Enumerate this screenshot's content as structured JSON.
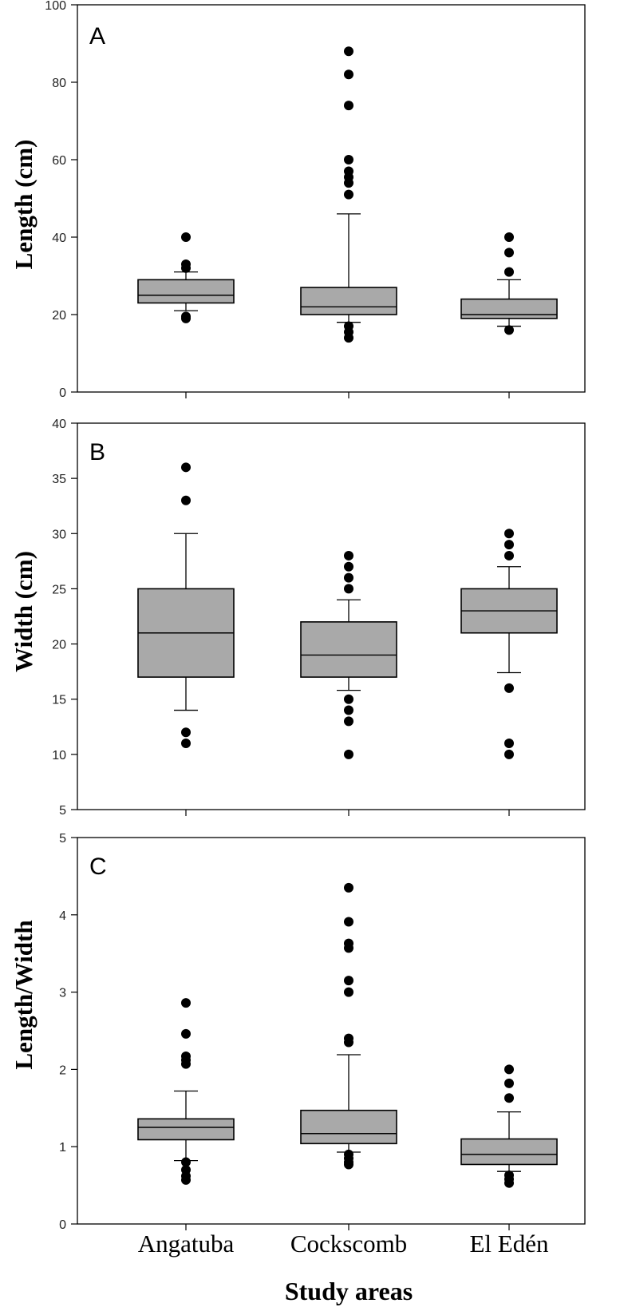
{
  "chart_data": [
    {
      "type": "box",
      "panel_label": "A",
      "ylabel": "Length (cm)",
      "ylim": [
        0,
        100
      ],
      "yticks": [
        0,
        20,
        40,
        60,
        80,
        100
      ],
      "categories": [
        "Angatuba",
        "Cockscomb",
        "El Edén"
      ],
      "box_color": "#a9a9a9",
      "boxes": [
        {
          "category": "Angatuba",
          "whisker_low": 21,
          "q1": 23,
          "median": 25,
          "q3": 29,
          "whisker_high": 31,
          "outliers": [
            19,
            19.5,
            32,
            33,
            40
          ]
        },
        {
          "category": "Cockscomb",
          "whisker_low": 18,
          "q1": 20,
          "median": 22,
          "q3": 27,
          "whisker_high": 46,
          "outliers": [
            14,
            15.5,
            17,
            51,
            54,
            55.5,
            57,
            60,
            74,
            82,
            88
          ]
        },
        {
          "category": "El Edén",
          "whisker_low": 17,
          "q1": 19,
          "median": 20,
          "q3": 24,
          "whisker_high": 29,
          "outliers": [
            16,
            31,
            36,
            40
          ]
        }
      ]
    },
    {
      "type": "box",
      "panel_label": "B",
      "ylabel": "Width (cm)",
      "ylim": [
        5,
        40
      ],
      "yticks": [
        5,
        10,
        15,
        20,
        25,
        30,
        35,
        40
      ],
      "categories": [
        "Angatuba",
        "Cockscomb",
        "El Edén"
      ],
      "box_color": "#a9a9a9",
      "boxes": [
        {
          "category": "Angatuba",
          "whisker_low": 14,
          "q1": 17,
          "median": 21,
          "q3": 25,
          "whisker_high": 30,
          "outliers": [
            11,
            12,
            33,
            36
          ]
        },
        {
          "category": "Cockscomb",
          "whisker_low": 15.8,
          "q1": 17,
          "median": 19,
          "q3": 22,
          "whisker_high": 24,
          "outliers": [
            10,
            13,
            14,
            15,
            25,
            26,
            27,
            28
          ]
        },
        {
          "category": "El Edén",
          "whisker_low": 17.4,
          "q1": 21,
          "median": 23,
          "q3": 25,
          "whisker_high": 27,
          "outliers": [
            10,
            11,
            16,
            28,
            29,
            30
          ]
        }
      ]
    },
    {
      "type": "box",
      "panel_label": "C",
      "ylabel": "Length/Width",
      "ylim": [
        0,
        5
      ],
      "yticks": [
        0,
        1,
        2,
        3,
        4,
        5
      ],
      "categories": [
        "Angatuba",
        "Cockscomb",
        "El Edén"
      ],
      "xlabel": "Study areas",
      "box_color": "#a9a9a9",
      "boxes": [
        {
          "category": "Angatuba",
          "whisker_low": 0.82,
          "q1": 1.09,
          "median": 1.25,
          "q3": 1.36,
          "whisker_high": 1.72,
          "outliers": [
            0.57,
            0.62,
            0.7,
            0.8,
            2.07,
            2.12,
            2.17,
            2.46,
            2.86
          ]
        },
        {
          "category": "Cockscomb",
          "whisker_low": 0.93,
          "q1": 1.04,
          "median": 1.17,
          "q3": 1.47,
          "whisker_high": 2.19,
          "outliers": [
            0.77,
            0.8,
            0.85,
            0.9,
            2.35,
            2.4,
            3.0,
            3.15,
            3.57,
            3.63,
            3.91,
            4.35
          ]
        },
        {
          "category": "El Edén",
          "whisker_low": 0.68,
          "q1": 0.77,
          "median": 0.9,
          "q3": 1.1,
          "whisker_high": 1.45,
          "outliers": [
            0.53,
            0.58,
            0.63,
            1.63,
            1.82,
            2.0
          ]
        }
      ]
    }
  ]
}
